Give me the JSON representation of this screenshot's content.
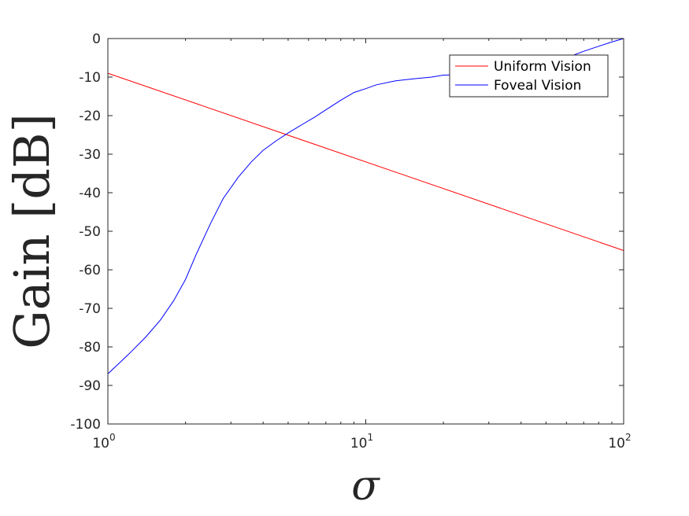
{
  "chart_data": {
    "type": "line",
    "xlabel": "σ",
    "ylabel": "Gain [dB]",
    "xscale": "log",
    "xlim": [
      1,
      100
    ],
    "ylim": [
      -100,
      0
    ],
    "x_ticks": [
      {
        "value": 1,
        "base": "10",
        "exp": "0"
      },
      {
        "value": 10,
        "base": "10",
        "exp": "1"
      },
      {
        "value": 100,
        "base": "10",
        "exp": "2"
      }
    ],
    "y_ticks": [
      {
        "value": 0,
        "label": "0"
      },
      {
        "value": -10,
        "label": "-10"
      },
      {
        "value": -20,
        "label": "-20"
      },
      {
        "value": -30,
        "label": "-30"
      },
      {
        "value": -40,
        "label": "-40"
      },
      {
        "value": -50,
        "label": "-50"
      },
      {
        "value": -60,
        "label": "-60"
      },
      {
        "value": -70,
        "label": "-70"
      },
      {
        "value": -80,
        "label": "-80"
      },
      {
        "value": -90,
        "label": "-90"
      },
      {
        "value": -100,
        "label": "-100"
      }
    ],
    "grid": false,
    "legend_position": "top-right",
    "series": [
      {
        "name": "Uniform Vision",
        "color": "#ff0000",
        "x": [
          1,
          100
        ],
        "y": [
          -9,
          -55
        ]
      },
      {
        "name": "Foveal Vision",
        "color": "#0000ff",
        "x": [
          1,
          1.2,
          1.4,
          1.6,
          1.8,
          2.0,
          2.2,
          2.5,
          2.8,
          3.2,
          3.6,
          4.0,
          4.5,
          5.0,
          5.6,
          6.3,
          7.0,
          8.0,
          9.0,
          10,
          11,
          13,
          15,
          18,
          20,
          25,
          30,
          35,
          40,
          45,
          50,
          55,
          60,
          70,
          80,
          90,
          100
        ],
        "y": [
          -87,
          -82,
          -77.5,
          -73,
          -68,
          -62.5,
          -56,
          -48,
          -41.5,
          -36,
          -32,
          -29,
          -26.5,
          -24.5,
          -22.5,
          -20.5,
          -18.5,
          -16,
          -14,
          -13,
          -12,
          -11,
          -10.5,
          -10,
          -9.5,
          -9.3,
          -9.1,
          -9.0,
          -8.9,
          -8.8,
          -8.7,
          -6.5,
          -5,
          -3.3,
          -2,
          -0.9,
          0
        ]
      }
    ]
  }
}
